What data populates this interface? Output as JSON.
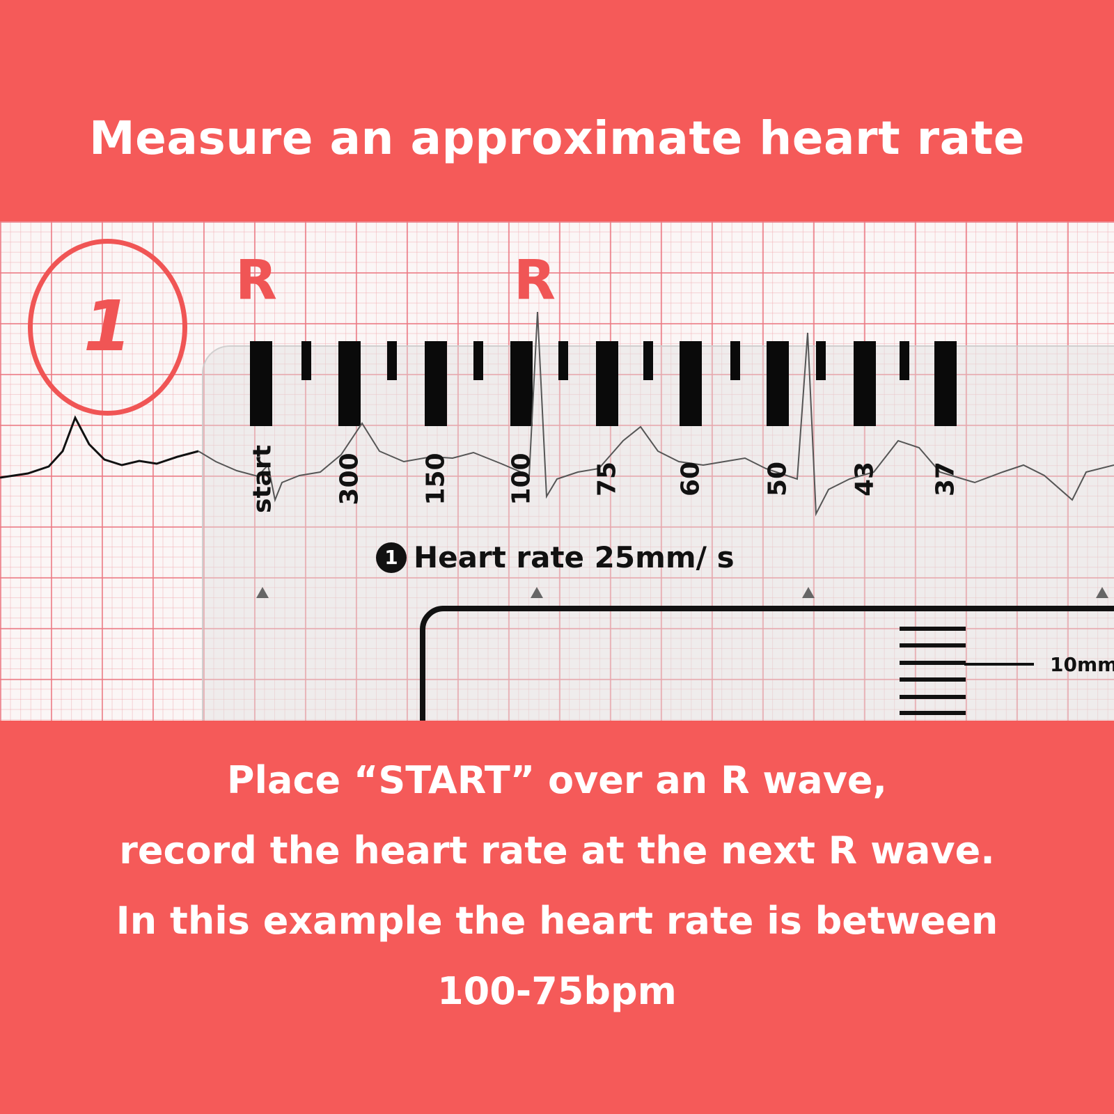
{
  "title": "Measure an approximate heart rate",
  "annotations": {
    "step_number": "1",
    "r_labels": [
      "R",
      "R"
    ]
  },
  "ruler": {
    "labels": [
      "start",
      "300",
      "150",
      "100",
      "75",
      "60",
      "50",
      "43",
      "37"
    ],
    "badge": "1",
    "heading": "Heart rate 25mm/ s",
    "scale_label": "10mm"
  },
  "instructions": [
    "Place “START” over an R wave,",
    "record the heart rate at the next R wave.",
    "In this example the heart rate is between",
    "100-75bpm"
  ],
  "colors": {
    "background": "#f55a59",
    "accent": "#f05555",
    "text": "#ffffff"
  }
}
